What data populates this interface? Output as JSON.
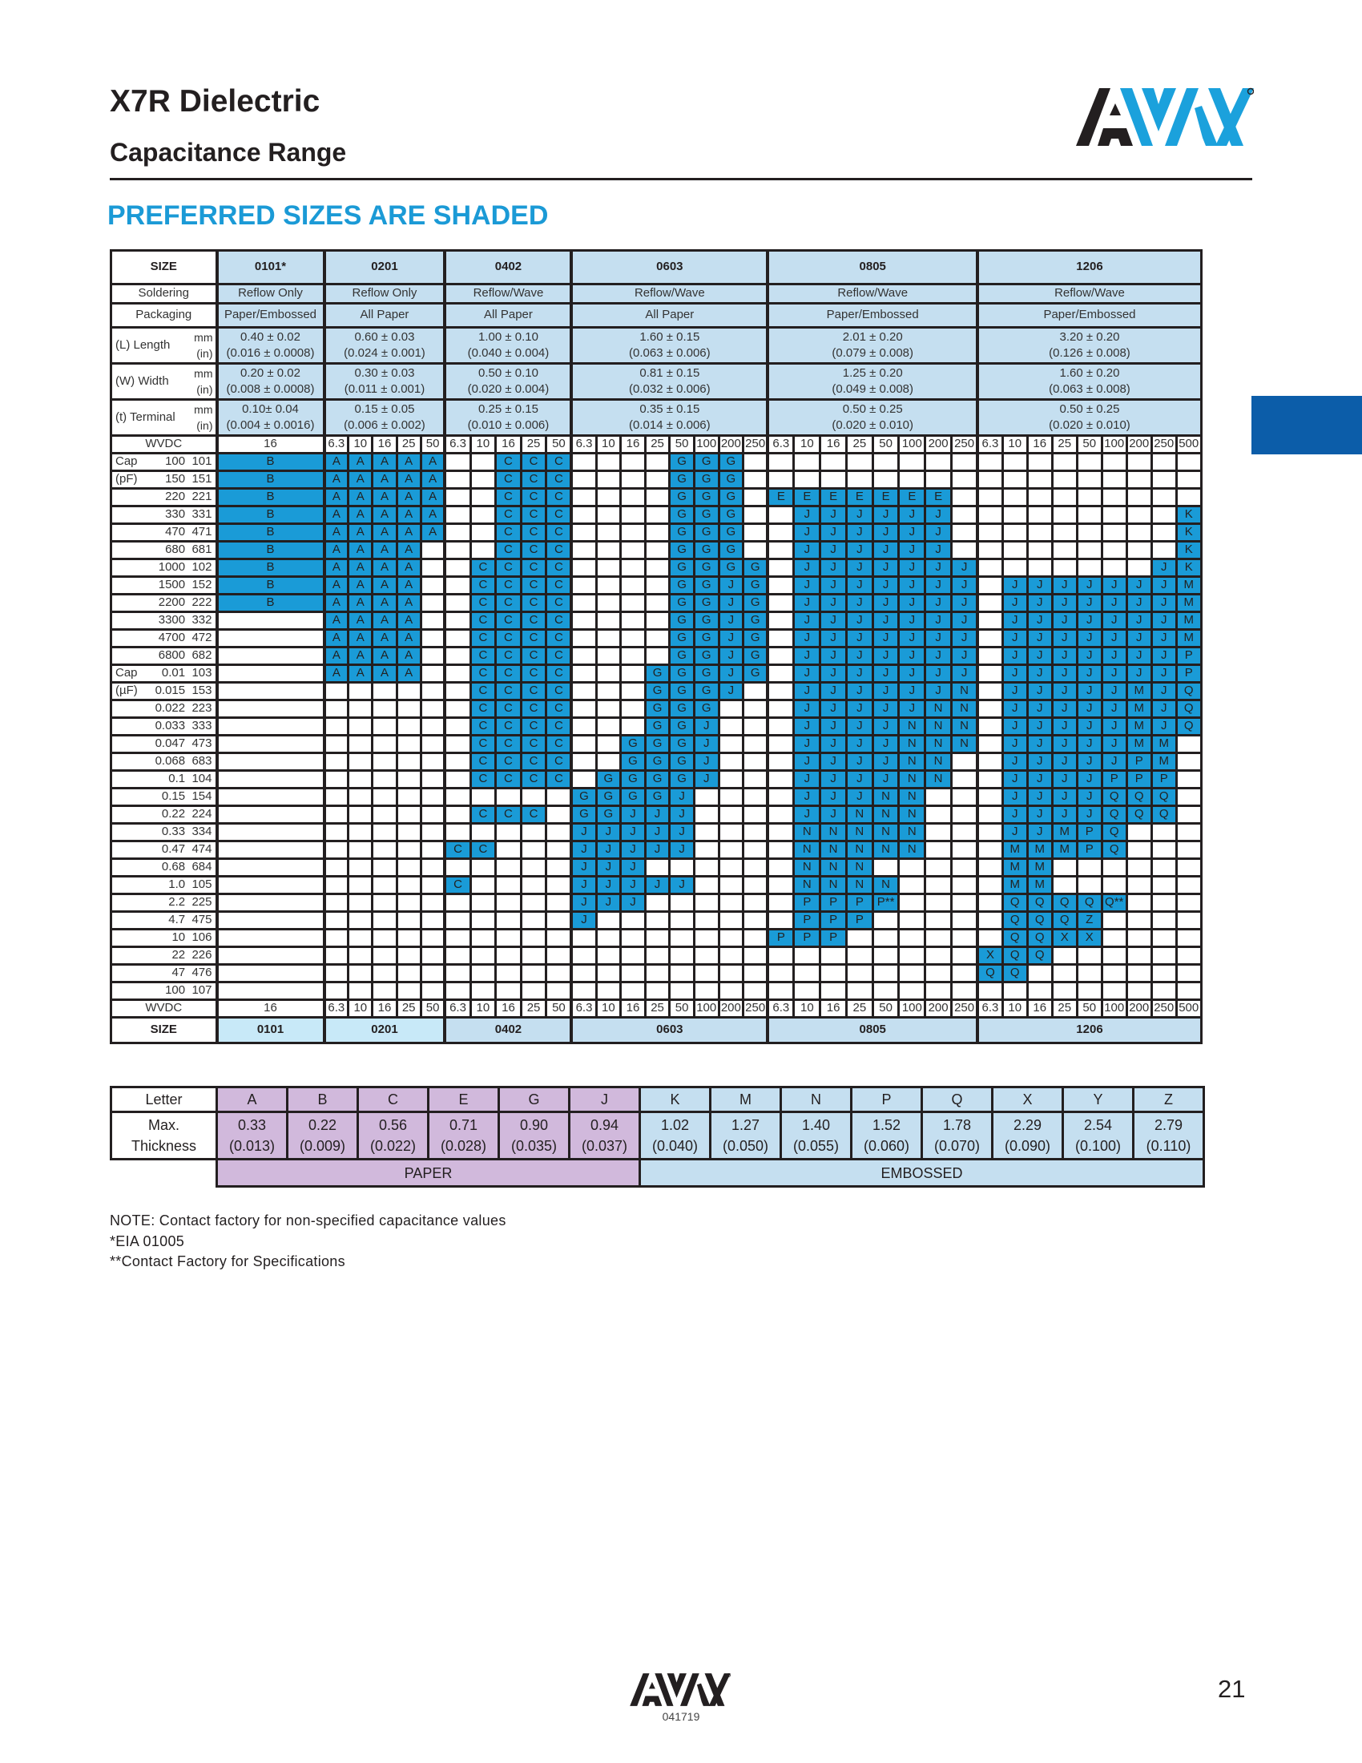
{
  "header": {
    "title": "X7R Dielectric",
    "subtitle": "Capacitance Range",
    "logo_text": "AVX"
  },
  "banner": "PREFERRED SIZES ARE SHADED",
  "colors": {
    "shaded": "#1a9bd7",
    "header_fill": "#c5dff0",
    "paper": "#d1b9dc",
    "embossed": "#c5dff0",
    "banner": "#1b9ad6",
    "side_tab": "#0c5da9"
  },
  "table": {
    "size_label": "SIZE",
    "sizes": [
      "0101*",
      "0201",
      "0402",
      "0603",
      "0805",
      "1206"
    ],
    "bottom_sizes": [
      "0101",
      "0201",
      "0402",
      "0603",
      "0805",
      "1206"
    ],
    "soldering_label": "Soldering",
    "soldering": [
      "Reflow Only",
      "Reflow Only",
      "Reflow/Wave",
      "Reflow/Wave",
      "Reflow/Wave",
      "Reflow/Wave"
    ],
    "packaging_label": "Packaging",
    "packaging": [
      "Paper/Embossed",
      "All Paper",
      "All Paper",
      "All Paper",
      "Paper/Embossed",
      "Paper/Embossed"
    ],
    "dims": [
      {
        "label": "(L) Length",
        "mm_unit": "mm",
        "in_unit": "(in)",
        "values": [
          {
            "mm": "0.40 ± 0.02",
            "in": "(0.016 ± 0.0008)"
          },
          {
            "mm": "0.60 ± 0.03",
            "in": "(0.024 ± 0.001)"
          },
          {
            "mm": "1.00 ± 0.10",
            "in": "(0.040 ± 0.004)"
          },
          {
            "mm": "1.60 ± 0.15",
            "in": "(0.063 ± 0.006)"
          },
          {
            "mm": "2.01 ± 0.20",
            "in": "(0.079 ± 0.008)"
          },
          {
            "mm": "3.20 ± 0.20",
            "in": "(0.126 ± 0.008)"
          }
        ]
      },
      {
        "label": "(W) Width",
        "mm_unit": "mm",
        "in_unit": "(in)",
        "values": [
          {
            "mm": "0.20 ± 0.02",
            "in": "(0.008 ± 0.0008)"
          },
          {
            "mm": "0.30 ± 0.03",
            "in": "(0.011 ± 0.001)"
          },
          {
            "mm": "0.50 ± 0.10",
            "in": "(0.020 ± 0.004)"
          },
          {
            "mm": "0.81 ± 0.15",
            "in": "(0.032 ± 0.006)"
          },
          {
            "mm": "1.25 ± 0.20",
            "in": "(0.049 ± 0.008)"
          },
          {
            "mm": "1.60 ± 0.20",
            "in": "(0.063 ± 0.008)"
          }
        ]
      },
      {
        "label": "(t) Terminal",
        "mm_unit": "mm",
        "in_unit": "(in)",
        "values": [
          {
            "mm": "0.10± 0.04",
            "in": "(0.004 ± 0.0016)"
          },
          {
            "mm": "0.15 ± 0.05",
            "in": "(0.006 ± 0.002)"
          },
          {
            "mm": "0.25 ± 0.15",
            "in": "(0.010 ± 0.006)"
          },
          {
            "mm": "0.35 ± 0.15",
            "in": "(0.014 ± 0.006)"
          },
          {
            "mm": "0.50 ± 0.25",
            "in": "(0.020 ± 0.010)"
          },
          {
            "mm": "0.50 ± 0.25",
            "in": "(0.020 ± 0.010)"
          }
        ]
      }
    ],
    "wvdc_label": "WVDC",
    "wvdc": [
      [
        "16"
      ],
      [
        "6.3",
        "10",
        "16",
        "25",
        "50"
      ],
      [
        "6.3",
        "10",
        "16",
        "25",
        "50"
      ],
      [
        "6.3",
        "10",
        "16",
        "25",
        "50",
        "100",
        "200",
        "250"
      ],
      [
        "6.3",
        "10",
        "16",
        "25",
        "50",
        "100",
        "200",
        "250"
      ],
      [
        "6.3",
        "10",
        "16",
        "25",
        "50",
        "100",
        "200",
        "250",
        "500"
      ]
    ],
    "rows": [
      {
        "prefix": "Cap",
        "cap": "100",
        "code": "101",
        "cells": [
          "B",
          "A A A A A",
          ". . C C C",
          ". . . . G G G .",
          ". . . . . . . .",
          ". . . . . . . . ."
        ]
      },
      {
        "prefix": "(pF)",
        "cap": "150",
        "code": "151",
        "cells": [
          "B",
          "A A A A A",
          ". . C C C",
          ". . . . G G G .",
          ". . . . . . . .",
          ". . . . . . . . ."
        ]
      },
      {
        "prefix": "",
        "cap": "220",
        "code": "221",
        "cells": [
          "B",
          "A A A A A",
          ". . C C C",
          ". . . . G G G .",
          "E E E E E E E .",
          ". . . . . . . . ."
        ]
      },
      {
        "prefix": "",
        "cap": "330",
        "code": "331",
        "cells": [
          "B",
          "A A A A A",
          ". . C C C",
          ". . . . G G G .",
          ". J J J J J J .",
          ". . . . . . . . K"
        ]
      },
      {
        "prefix": "",
        "cap": "470",
        "code": "471",
        "cells": [
          "B",
          "A A A A A",
          ". . C C C",
          ". . . . G G G .",
          ". J J J J J J .",
          ". . . . . . . . K"
        ]
      },
      {
        "prefix": "",
        "cap": "680",
        "code": "681",
        "cells": [
          "B",
          "A A A A .",
          ". . C C C",
          ". . . . G G G .",
          ". J J J J J J .",
          ". . . . . . . . K"
        ]
      },
      {
        "prefix": "",
        "cap": "1000",
        "code": "102",
        "cells": [
          "B",
          "A A A A .",
          ". C C C C",
          ". . . . G G G G",
          ". J J J J J J J",
          ". . . . . . . J K"
        ]
      },
      {
        "prefix": "",
        "cap": "1500",
        "code": "152",
        "cells": [
          "B",
          "A A A A .",
          ". C C C C",
          ". . . . G G J G",
          ". J J J J J J J",
          ". J J J J J J J M"
        ]
      },
      {
        "prefix": "",
        "cap": "2200",
        "code": "222",
        "cells": [
          "B",
          "A A A A .",
          ". C C C C",
          ". . . . G G J G",
          ". J J J J J J J",
          ". J J J J J J J M"
        ]
      },
      {
        "prefix": "",
        "cap": "3300",
        "code": "332",
        "cells": [
          ".",
          "A A A A .",
          ". C C C C",
          ". . . . G G J G",
          ". J J J J J J J",
          ". J J J J J J J M"
        ]
      },
      {
        "prefix": "",
        "cap": "4700",
        "code": "472",
        "cells": [
          ".",
          "A A A A .",
          ". C C C C",
          ". . . . G G J G",
          ". J J J J J J J",
          ". J J J J J J J M"
        ]
      },
      {
        "prefix": "",
        "cap": "6800",
        "code": "682",
        "cells": [
          ".",
          "A A A A .",
          ". C C C C",
          ". . . . G G J G",
          ". J J J J J J J",
          ". J J J J J J J P"
        ]
      },
      {
        "prefix": "Cap",
        "cap": "0.01",
        "code": "103",
        "cells": [
          ".",
          "A A A A .",
          ". C C C C",
          ". . . G G G J G",
          ". J J J J J J J",
          ". J J J J J J J P"
        ]
      },
      {
        "prefix": "(µF)",
        "cap": "0.015",
        "code": "153",
        "cells": [
          ".",
          ". . . . .",
          ". C C C C",
          ". . . G G G J .",
          ". J J J J J J N",
          ". J J J J J M J Q"
        ]
      },
      {
        "prefix": "",
        "cap": "0.022",
        "code": "223",
        "cells": [
          ".",
          ". . . . .",
          ". C C C C",
          ". . . G G G . .",
          ". J J J J J N N",
          ". J J J J J M J Q"
        ]
      },
      {
        "prefix": "",
        "cap": "0.033",
        "code": "333",
        "cells": [
          ".",
          ". . . . .",
          ". C C C C",
          ". . . G G J . .",
          ". J J J J N N N",
          ". J J J J J M J Q"
        ]
      },
      {
        "prefix": "",
        "cap": "0.047",
        "code": "473",
        "cells": [
          ".",
          ". . . . .",
          ". C C C C",
          ". . G G G J . .",
          ". J J J J N N N",
          ". J J J J J M M ."
        ]
      },
      {
        "prefix": "",
        "cap": "0.068",
        "code": "683",
        "cells": [
          ".",
          ". . . . .",
          ". C C C C",
          ". . G G G J . .",
          ". J J J J N N .",
          ". J J J J J P M ."
        ]
      },
      {
        "prefix": "",
        "cap": "0.1",
        "code": "104",
        "cells": [
          ".",
          ". . . . .",
          ". C C C C",
          ". G G G G J . .",
          ". J J J J N N .",
          ". J J J J P P P ."
        ]
      },
      {
        "prefix": "",
        "cap": "0.15",
        "code": "154",
        "cells": [
          ".",
          ". . . . .",
          ". . . . .",
          "G G G G J . . .",
          ". J J J N N . .",
          ". J J J J Q Q Q ."
        ]
      },
      {
        "prefix": "",
        "cap": "0.22",
        "code": "224",
        "cells": [
          ".",
          ". . . . .",
          ". C C C .",
          "G G J J J . . .",
          ". J J N N N . .",
          ". J J J J Q Q Q ."
        ]
      },
      {
        "prefix": "",
        "cap": "0.33",
        "code": "334",
        "cells": [
          ".",
          ". . . . .",
          ". . . . .",
          "J J J J J . . .",
          ". N N N N N . .",
          ". J J M P Q . . ."
        ]
      },
      {
        "prefix": "",
        "cap": "0.47",
        "code": "474",
        "cells": [
          ".",
          ". . . . .",
          "C C . . .",
          "J J J J J . . .",
          ". N N N N N . .",
          ". M M M P Q . . ."
        ]
      },
      {
        "prefix": "",
        "cap": "0.68",
        "code": "684",
        "cells": [
          ".",
          ". . . . .",
          ". . . . .",
          "J J J . . . . .",
          ". N N N . . . .",
          ". M M . . . . . ."
        ]
      },
      {
        "prefix": "",
        "cap": "1.0",
        "code": "105",
        "cells": [
          ".",
          ". . . . .",
          "C . . . .",
          "J J J J J . . .",
          ". N N N N . . .",
          ". M M . . . . . ."
        ]
      },
      {
        "prefix": "",
        "cap": "2.2",
        "code": "225",
        "cells": [
          ".",
          ". . . . .",
          ". . . . .",
          "J J J . . . . .",
          ". P P P P** . . .",
          ". Q Q Q Q Q** . . ."
        ]
      },
      {
        "prefix": "",
        "cap": "4.7",
        "code": "475",
        "cells": [
          ".",
          ". . . . .",
          ". . . . .",
          "J . . . . . . .",
          ". P P P . . . .",
          ". Q Q Q Z . . . ."
        ]
      },
      {
        "prefix": "",
        "cap": "10",
        "code": "106",
        "cells": [
          ".",
          ". . . . .",
          ". . . . .",
          ". . . . . . . .",
          "P P P . . . . .",
          ". Q Q X X . . . ."
        ]
      },
      {
        "prefix": "",
        "cap": "22",
        "code": "226",
        "cells": [
          ".",
          ". . . . .",
          ". . . . .",
          ". . . . . . . .",
          ". . . . . . . .",
          "X Q Q . . . . . ."
        ]
      },
      {
        "prefix": "",
        "cap": "47",
        "code": "476",
        "cells": [
          ".",
          ". . . . .",
          ". . . . .",
          ". . . . . . . .",
          ". . . . . . . .",
          "Q Q . . . . . . ."
        ]
      },
      {
        "prefix": "",
        "cap": "100",
        "code": "107",
        "cells": [
          ".",
          ". . . . .",
          ". . . . .",
          ". . . . . . . .",
          ". . . . . . . .",
          ". . . . . . . . ."
        ]
      }
    ]
  },
  "legend": {
    "letter_label": "Letter",
    "thickness_label_1": "Max.",
    "thickness_label_2": "Thickness",
    "letters": [
      "A",
      "B",
      "C",
      "E",
      "G",
      "J",
      "K",
      "M",
      "N",
      "P",
      "Q",
      "X",
      "Y",
      "Z"
    ],
    "mm": [
      "0.33",
      "0.22",
      "0.56",
      "0.71",
      "0.90",
      "0.94",
      "1.02",
      "1.27",
      "1.40",
      "1.52",
      "1.78",
      "2.29",
      "2.54",
      "2.79"
    ],
    "in": [
      "(0.013)",
      "(0.009)",
      "(0.022)",
      "(0.028)",
      "(0.035)",
      "(0.037)",
      "(0.040)",
      "(0.050)",
      "(0.055)",
      "(0.060)",
      "(0.070)",
      "(0.090)",
      "(0.100)",
      "(0.110)"
    ],
    "paper_count": 6,
    "paper_label": "PAPER",
    "embossed_label": "EMBOSSED"
  },
  "notes": [
    "NOTE: Contact factory for non-specified capacitance values",
    "*EIA 01005",
    "**Contact Factory for Specifications"
  ],
  "footer": {
    "code": "041719",
    "page": "21"
  }
}
